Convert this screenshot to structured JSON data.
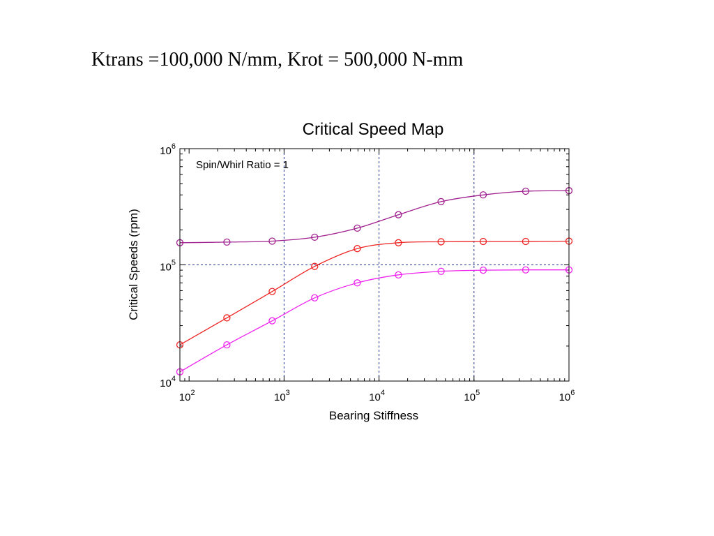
{
  "slide": {
    "heading": "Ktrans =100,000 N/mm, Krot = 500,000 N-mm"
  },
  "chart_data": {
    "type": "line",
    "title": "Critical Speed Map",
    "xlabel": "Bearing Stiffness",
    "ylabel": "Critical Speeds (rpm)",
    "annotation": "Spin/Whirl Ratio = 1",
    "xscale": "log",
    "yscale": "log",
    "xlim": [
      80,
      1000000
    ],
    "ylim": [
      10000,
      1000000
    ],
    "x_ticks": [
      {
        "value": 100,
        "base": "10",
        "exp": "2"
      },
      {
        "value": 1000,
        "base": "10",
        "exp": "3"
      },
      {
        "value": 10000,
        "base": "10",
        "exp": "4"
      },
      {
        "value": 100000,
        "base": "10",
        "exp": "5"
      },
      {
        "value": 1000000,
        "base": "10",
        "exp": "6"
      }
    ],
    "y_ticks": [
      {
        "value": 10000,
        "base": "10",
        "exp": "4"
      },
      {
        "value": 100000,
        "base": "10",
        "exp": "5"
      },
      {
        "value": 1000000,
        "base": "10",
        "exp": "6"
      }
    ],
    "grid": {
      "x_values": [
        1000,
        10000,
        100000
      ],
      "y_values": [
        100000
      ],
      "color": "#1f2f8f",
      "style": "dashed"
    },
    "x": [
      80,
      250,
      750,
      2100,
      5900,
      16000,
      45000,
      125000,
      350000,
      1000000
    ],
    "series": [
      {
        "color": "#a0208f",
        "values": [
          155000,
          157000,
          160000,
          173000,
          207000,
          270000,
          350000,
          400000,
          430000,
          435000
        ]
      },
      {
        "color": "#ee2222",
        "values": [
          20500,
          35000,
          59000,
          97000,
          138000,
          155000,
          158000,
          159000,
          159000,
          160000
        ]
      },
      {
        "color": "#ee22ee",
        "values": [
          12000,
          20500,
          33000,
          52000,
          70000,
          82000,
          88000,
          90000,
          90500,
          90500
        ]
      }
    ]
  }
}
